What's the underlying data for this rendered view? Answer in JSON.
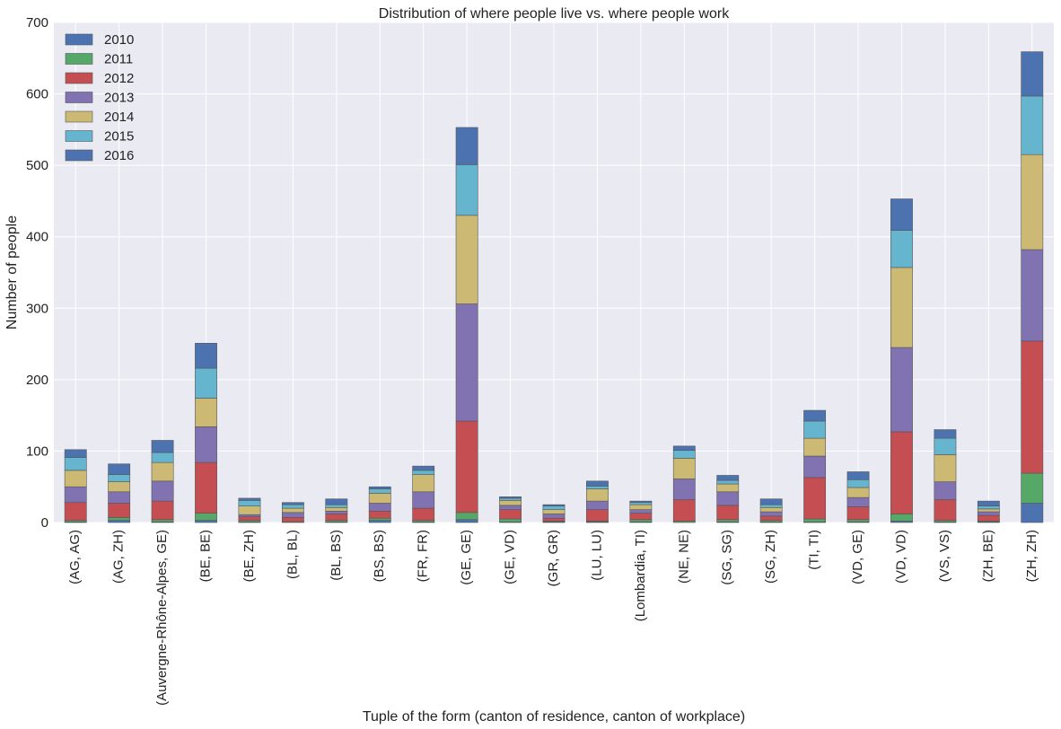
{
  "chart_data": {
    "type": "bar",
    "stacked": true,
    "title": "Distribution of where people live vs. where people work",
    "xlabel": "Tuple of the form (canton of residence, canton of workplace)",
    "ylabel": "Number of people",
    "ylim": [
      0,
      700
    ],
    "yticks": [
      0,
      100,
      200,
      300,
      400,
      500,
      600,
      700
    ],
    "grid": true,
    "legend_position": "top-left",
    "categories": [
      "(AG, AG)",
      "(AG, ZH)",
      "(Auvergne-Rhône-Alpes, GE)",
      "(BE, BE)",
      "(BE, ZH)",
      "(BL, BL)",
      "(BL, BS)",
      "(BS, BS)",
      "(FR, FR)",
      "(GE, GE)",
      "(GE, VD)",
      "(GR, GR)",
      "(LU, LU)",
      "(Lombardia, TI)",
      "(NE, NE)",
      "(SG, SG)",
      "(SG, ZH)",
      "(TI, TI)",
      "(VD, GE)",
      "(VD, VD)",
      "(VS, VS)",
      "(ZH, BE)",
      "(ZH, ZH)"
    ],
    "highlighted_categories": [
      "(AG, ZH)",
      "(Auvergne-Rhône-Alpes, GE)",
      "(BE, ZH)",
      "(BL, BS)",
      "(GE, VD)",
      "(Lombardia, TI)",
      "(SG, ZH)",
      "(VD, GE)",
      "(ZH, BE)"
    ],
    "highlight_color": "#ff0000",
    "series": [
      {
        "name": "2010",
        "color": "#4C72B0",
        "values": [
          1,
          3,
          1,
          3,
          1,
          0,
          1,
          3,
          1,
          4,
          1,
          1,
          1,
          1,
          0,
          1,
          1,
          1,
          1,
          2,
          1,
          1,
          27
        ]
      },
      {
        "name": "2011",
        "color": "#55A868",
        "values": [
          2,
          4,
          3,
          10,
          2,
          1,
          2,
          3,
          2,
          10,
          4,
          1,
          1,
          3,
          2,
          3,
          2,
          4,
          3,
          10,
          2,
          1,
          42
        ]
      },
      {
        "name": "2012",
        "color": "#C44E52",
        "values": [
          25,
          20,
          26,
          71,
          5,
          6,
          9,
          10,
          17,
          128,
          13,
          4,
          16,
          9,
          30,
          20,
          6,
          58,
          18,
          115,
          29,
          8,
          185
        ]
      },
      {
        "name": "2013",
        "color": "#8172B2",
        "values": [
          22,
          16,
          28,
          50,
          3,
          7,
          4,
          11,
          23,
          164,
          6,
          6,
          12,
          5,
          29,
          19,
          6,
          30,
          13,
          118,
          25,
          5,
          128
        ]
      },
      {
        "name": "2014",
        "color": "#CCB974",
        "values": [
          23,
          14,
          26,
          40,
          12,
          6,
          5,
          14,
          24,
          124,
          7,
          6,
          17,
          7,
          29,
          11,
          6,
          25,
          14,
          112,
          38,
          4,
          133
        ]
      },
      {
        "name": "2015",
        "color": "#64B5CD",
        "values": [
          18,
          10,
          14,
          42,
          8,
          5,
          4,
          6,
          6,
          71,
          3,
          5,
          4,
          3,
          11,
          5,
          4,
          24,
          11,
          52,
          23,
          4,
          82
        ]
      },
      {
        "name": "2016",
        "color": "#4C72B0",
        "values": [
          11,
          15,
          17,
          35,
          3,
          3,
          8,
          3,
          6,
          52,
          2,
          2,
          7,
          2,
          6,
          7,
          8,
          15,
          11,
          44,
          12,
          7,
          62
        ]
      }
    ]
  },
  "style": {
    "plot_background": "#EAEAF2",
    "grid_color": "#ffffff",
    "default_tick_color": "#222222",
    "bar_edge_color": "#555555"
  }
}
